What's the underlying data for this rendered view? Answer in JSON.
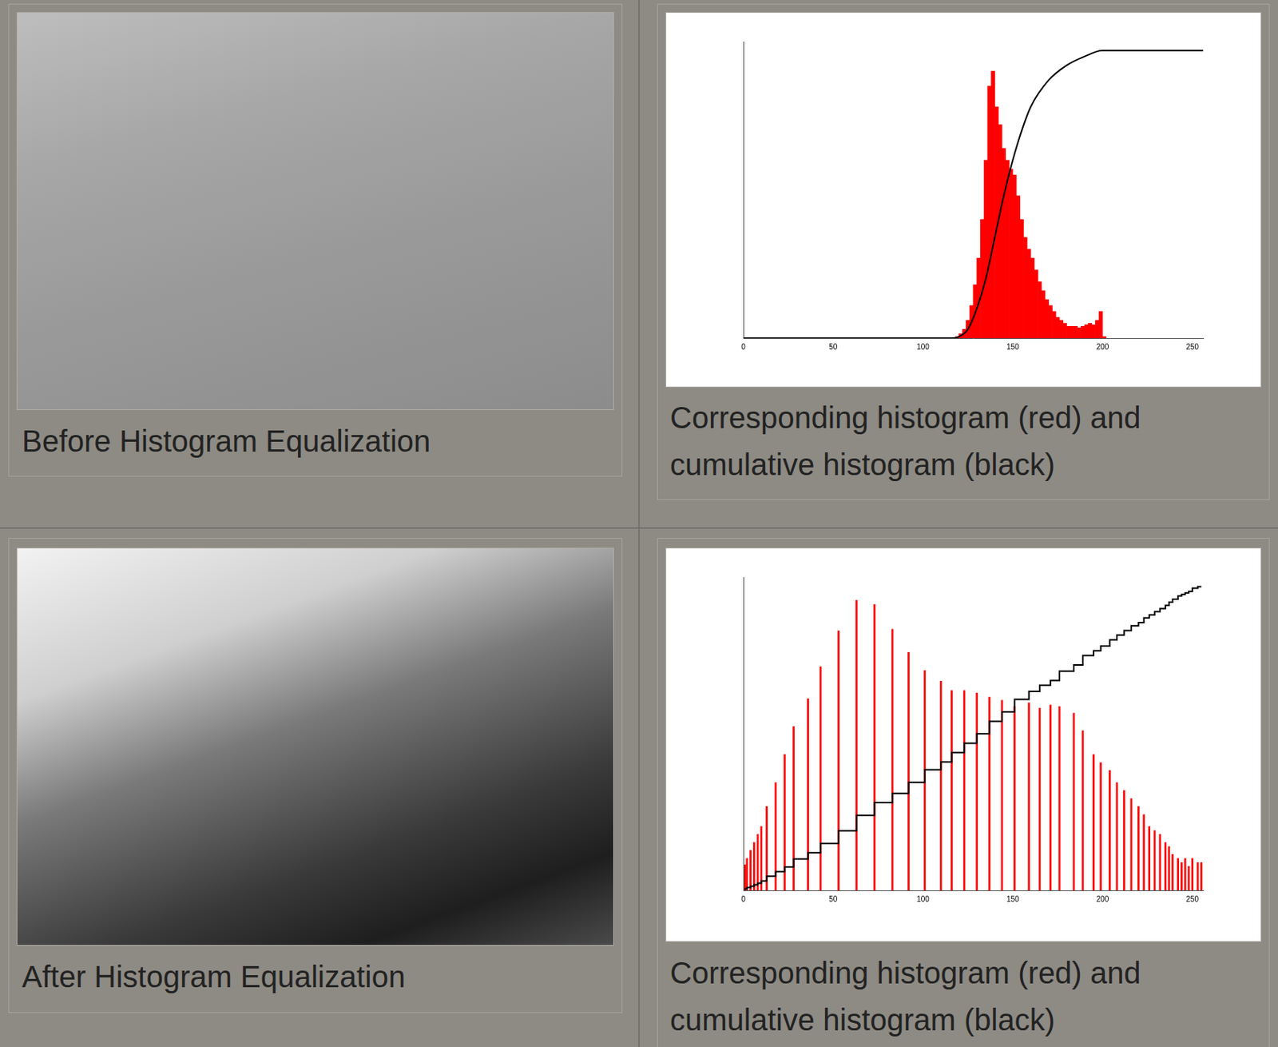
{
  "gallery": [
    {
      "caption": "Before Histogram Equalization"
    },
    {
      "caption": "After Histogram Equalization"
    }
  ],
  "chart_data": [
    {
      "type": "histogram",
      "caption": "Corresponding histogram (red) and cumulative histogram (black)",
      "xlim": [
        0,
        256
      ],
      "xticks": [
        0,
        50,
        100,
        150,
        200,
        250
      ],
      "ylim": [
        0,
        100
      ],
      "tick_labels": "x",
      "grid": false,
      "series": [
        {
          "type": "bar",
          "color": "#ff0000",
          "bins": [
            118,
            120,
            122,
            124,
            126,
            128,
            130,
            132,
            134,
            136,
            138,
            140,
            142,
            144,
            146,
            148,
            150,
            152,
            154,
            156,
            158,
            160,
            162,
            164,
            166,
            168,
            170,
            172,
            174,
            176,
            178,
            180,
            182,
            184,
            186,
            188,
            190,
            192,
            194,
            196,
            198,
            200,
            202
          ],
          "values": [
            0.5,
            1.5,
            3,
            6,
            11,
            18,
            27,
            40,
            60,
            85,
            90,
            78,
            72,
            64,
            60,
            57,
            55,
            48,
            40,
            34,
            30,
            27,
            23,
            19,
            16,
            13,
            11,
            9,
            7,
            6,
            5,
            4,
            4,
            4,
            3.5,
            4,
            4.5,
            5,
            4.5,
            6,
            9,
            0.5
          ]
        },
        {
          "type": "line",
          "color": "#000000",
          "line_style": "smooth",
          "x": [
            0,
            115,
            120,
            125,
            130,
            135,
            140,
            145,
            150,
            155,
            160,
            170,
            180,
            190,
            200,
            256
          ],
          "values": [
            0,
            0,
            0.5,
            3,
            10,
            20,
            34,
            48,
            60,
            70,
            78,
            87,
            92,
            95,
            97,
            97
          ]
        }
      ]
    },
    {
      "type": "histogram",
      "caption": "Corresponding histogram (red) and cumulative histogram (black)",
      "xlim": [
        0,
        256
      ],
      "xticks": [
        0,
        50,
        100,
        150,
        200,
        250
      ],
      "ylim": [
        0,
        100
      ],
      "tick_labels": "x",
      "grid": false,
      "series": [
        {
          "type": "bar",
          "color": "#ff0000",
          "x": [
            1,
            2,
            4,
            6,
            8,
            10,
            13,
            18,
            23,
            28,
            36,
            43,
            53,
            63,
            73,
            83,
            92,
            101,
            110,
            116,
            123,
            130,
            137,
            144,
            151,
            159,
            165,
            171,
            176,
            184,
            189,
            195,
            199,
            204,
            208,
            212,
            216,
            220,
            223,
            226,
            229,
            232,
            235,
            237,
            239,
            242,
            244,
            246,
            248,
            250,
            253,
            255
          ],
          "values": [
            8.2,
            10.2,
            12.8,
            15.3,
            17.9,
            20.4,
            26.8,
            34.4,
            43.4,
            52.3,
            61.2,
            71.4,
            82.9,
            92.6,
            91.3,
            83.4,
            76,
            70.2,
            66.8,
            63.8,
            63.8,
            63,
            61.7,
            60.7,
            58.7,
            59.9,
            58.2,
            59.2,
            58.7,
            56.6,
            51,
            43.4,
            40.8,
            38.3,
            34.4,
            31.9,
            29.3,
            26.8,
            24.2,
            20.4,
            19.1,
            17.9,
            15.3,
            14,
            11.5,
            10.2,
            8.9,
            10.2,
            7.7,
            10.2,
            8.9,
            8.9
          ]
        },
        {
          "type": "line",
          "color": "#000000",
          "line_style": "stepped",
          "x": [
            1,
            2,
            4,
            6,
            8,
            10,
            13,
            18,
            23,
            28,
            36,
            43,
            53,
            63,
            73,
            83,
            92,
            101,
            110,
            116,
            123,
            130,
            137,
            144,
            151,
            159,
            165,
            171,
            176,
            184,
            189,
            195,
            199,
            204,
            208,
            212,
            216,
            220,
            223,
            226,
            229,
            232,
            235,
            237,
            239,
            242,
            244,
            246,
            248,
            250,
            253,
            255
          ],
          "values": [
            0.2,
            0.5,
            0.9,
            1.3,
            1.8,
            2.3,
            3,
            4.5,
            6,
            7.5,
            10,
            12,
            15,
            19,
            24,
            28,
            31,
            34.5,
            38.5,
            41,
            44,
            47,
            50,
            54,
            57,
            61,
            63.5,
            65.5,
            67,
            70,
            72,
            75,
            76.5,
            78,
            80,
            81.5,
            83,
            84.5,
            85.5,
            87,
            88,
            89,
            90,
            91,
            92,
            93,
            94,
            94.5,
            95,
            95.5,
            96.5,
            97
          ]
        }
      ]
    }
  ]
}
